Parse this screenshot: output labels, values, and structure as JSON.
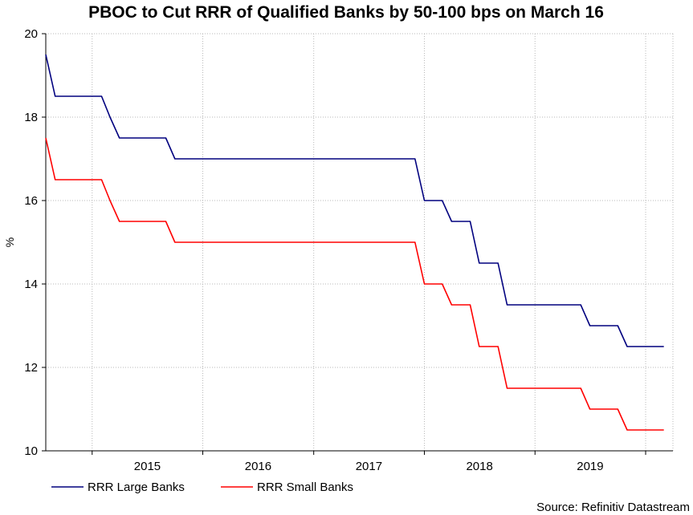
{
  "chart_data": {
    "type": "line",
    "title": "PBOC to Cut RRR of Qualified Banks by 50-100 bps on March 16",
    "ylabel": "%",
    "xlabel": "",
    "ylim": [
      10,
      20
    ],
    "yticks": [
      10,
      12,
      14,
      16,
      18,
      20
    ],
    "xlim": [
      "2014-08-01",
      "2020-03-31"
    ],
    "xticks": [
      "2015",
      "2016",
      "2017",
      "2018",
      "2019"
    ],
    "grid": true,
    "legend_position": "bottom-left",
    "source": "Source: Refinitiv Datastream",
    "series": [
      {
        "name": "RRR Large Banks",
        "color": "#00007f",
        "points": [
          [
            "2014-08-01",
            19.5
          ],
          [
            "2014-09-01",
            18.5
          ],
          [
            "2015-02-01",
            18.5
          ],
          [
            "2015-03-01",
            18.0
          ],
          [
            "2015-04-01",
            17.5
          ],
          [
            "2015-09-01",
            17.5
          ],
          [
            "2015-10-01",
            17.0
          ],
          [
            "2017-12-01",
            17.0
          ],
          [
            "2018-01-01",
            16.0
          ],
          [
            "2018-03-01",
            16.0
          ],
          [
            "2018-04-01",
            15.5
          ],
          [
            "2018-06-01",
            15.5
          ],
          [
            "2018-07-01",
            14.5
          ],
          [
            "2018-09-01",
            14.5
          ],
          [
            "2018-10-01",
            13.5
          ],
          [
            "2019-06-01",
            13.5
          ],
          [
            "2019-07-01",
            13.0
          ],
          [
            "2019-10-01",
            13.0
          ],
          [
            "2019-11-01",
            12.5
          ],
          [
            "2020-03-01",
            12.5
          ]
        ]
      },
      {
        "name": "RRR Small Banks",
        "color": "#ff0000",
        "points": [
          [
            "2014-08-01",
            17.5
          ],
          [
            "2014-09-01",
            16.5
          ],
          [
            "2015-02-01",
            16.5
          ],
          [
            "2015-03-01",
            16.0
          ],
          [
            "2015-04-01",
            15.5
          ],
          [
            "2015-09-01",
            15.5
          ],
          [
            "2015-10-01",
            15.0
          ],
          [
            "2017-12-01",
            15.0
          ],
          [
            "2018-01-01",
            14.0
          ],
          [
            "2018-03-01",
            14.0
          ],
          [
            "2018-04-01",
            13.5
          ],
          [
            "2018-06-01",
            13.5
          ],
          [
            "2018-07-01",
            12.5
          ],
          [
            "2018-09-01",
            12.5
          ],
          [
            "2018-10-01",
            11.5
          ],
          [
            "2019-06-01",
            11.5
          ],
          [
            "2019-07-01",
            11.0
          ],
          [
            "2019-10-01",
            11.0
          ],
          [
            "2019-11-01",
            10.5
          ],
          [
            "2020-03-01",
            10.5
          ]
        ]
      }
    ]
  }
}
